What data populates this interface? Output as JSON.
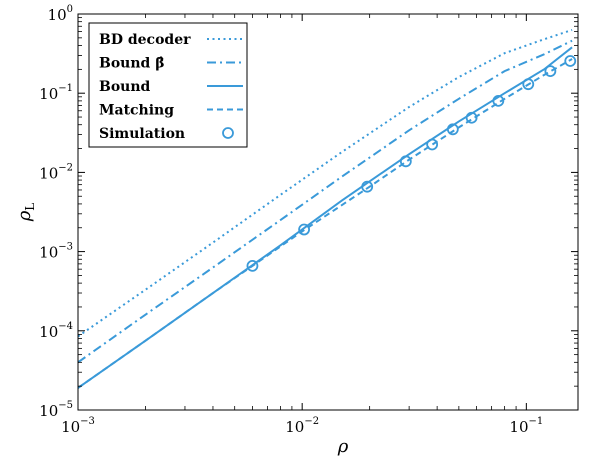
{
  "chart_data": {
    "type": "line",
    "xscale": "log",
    "yscale": "log",
    "xlim": [
      0.001,
      0.17
    ],
    "ylim": [
      1e-05,
      1
    ],
    "xlabel": "ρ",
    "ylabel": "ρL",
    "ylabel_main": "ρ",
    "ylabel_sub": "L",
    "grid": false,
    "legend_position": "top-left",
    "color": "#3a9ad9",
    "x_ticks": [
      {
        "value": 0.001,
        "base": "10",
        "exp": "−3"
      },
      {
        "value": 0.01,
        "base": "10",
        "exp": "−2"
      },
      {
        "value": 0.1,
        "base": "10",
        "exp": "−1"
      }
    ],
    "y_ticks": [
      {
        "value": 1,
        "base": "10",
        "exp": "0"
      },
      {
        "value": 0.1,
        "base": "10",
        "exp": "−1"
      },
      {
        "value": 0.01,
        "base": "10",
        "exp": "−2"
      },
      {
        "value": 0.001,
        "base": "10",
        "exp": "−3"
      },
      {
        "value": 0.0001,
        "base": "10",
        "exp": "−4"
      },
      {
        "value": 1e-05,
        "base": "10",
        "exp": "−5"
      }
    ],
    "series": [
      {
        "name": "BD decoder",
        "style": "dotted",
        "points": [
          [
            0.001,
            8.5e-05
          ],
          [
            0.002,
            0.00033
          ],
          [
            0.004,
            0.0013
          ],
          [
            0.008,
            0.0052
          ],
          [
            0.015,
            0.018
          ],
          [
            0.03,
            0.067
          ],
          [
            0.05,
            0.16
          ],
          [
            0.08,
            0.32
          ],
          [
            0.12,
            0.48
          ],
          [
            0.16,
            0.63
          ]
        ]
      },
      {
        "name": "Bound β̂",
        "style": "dashdot",
        "points": [
          [
            0.001,
            4e-05
          ],
          [
            0.002,
            0.00016
          ],
          [
            0.004,
            0.00063
          ],
          [
            0.008,
            0.0025
          ],
          [
            0.015,
            0.0088
          ],
          [
            0.03,
            0.034
          ],
          [
            0.05,
            0.085
          ],
          [
            0.08,
            0.19
          ],
          [
            0.12,
            0.31
          ],
          [
            0.16,
            0.46
          ]
        ]
      },
      {
        "name": "Bound",
        "style": "solid",
        "points": [
          [
            0.001,
            1.9e-05
          ],
          [
            0.002,
            7.5e-05
          ],
          [
            0.004,
            0.0003
          ],
          [
            0.008,
            0.0012
          ],
          [
            0.015,
            0.0044
          ],
          [
            0.03,
            0.017
          ],
          [
            0.05,
            0.044
          ],
          [
            0.08,
            0.1
          ],
          [
            0.12,
            0.2
          ],
          [
            0.16,
            0.38
          ]
        ]
      },
      {
        "name": "Matching",
        "style": "dashed",
        "points": [
          [
            0.001,
            1.9e-05
          ],
          [
            0.002,
            7.5e-05
          ],
          [
            0.004,
            0.0003
          ],
          [
            0.006,
            0.00066
          ],
          [
            0.01,
            0.0018
          ],
          [
            0.02,
            0.0066
          ],
          [
            0.03,
            0.0145
          ],
          [
            0.05,
            0.037
          ],
          [
            0.08,
            0.085
          ],
          [
            0.12,
            0.17
          ],
          [
            0.16,
            0.27
          ]
        ]
      },
      {
        "name": "Simulation",
        "style": "markers",
        "points": [
          [
            0.006,
            0.00066
          ],
          [
            0.0102,
            0.0019
          ],
          [
            0.0195,
            0.0066
          ],
          [
            0.029,
            0.0138
          ],
          [
            0.038,
            0.0225
          ],
          [
            0.047,
            0.035
          ],
          [
            0.057,
            0.049
          ],
          [
            0.075,
            0.08
          ],
          [
            0.102,
            0.13
          ],
          [
            0.128,
            0.19
          ],
          [
            0.157,
            0.255
          ]
        ]
      }
    ]
  }
}
